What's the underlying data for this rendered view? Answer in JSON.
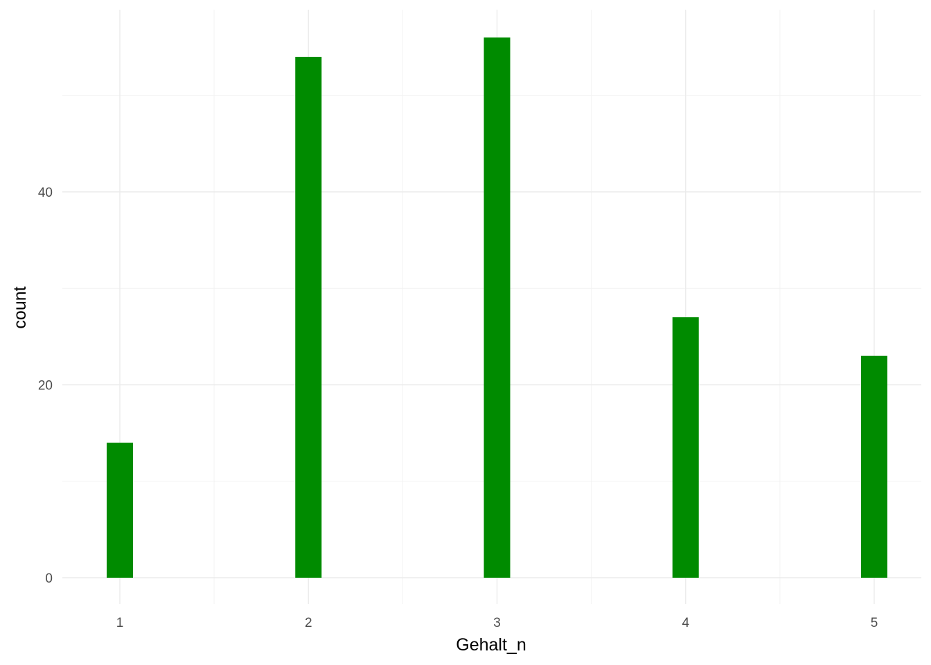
{
  "chart_data": {
    "type": "bar",
    "title": "",
    "xlabel": "Gehalt_n",
    "ylabel": "count",
    "x": [
      1,
      2,
      3,
      4,
      5
    ],
    "x_tick_labels": [
      "1",
      "2",
      "3",
      "4",
      "5"
    ],
    "values": [
      14,
      54,
      56,
      27,
      23
    ],
    "y_ticks": [
      0,
      20,
      40
    ],
    "y_tick_labels": [
      "0",
      "20",
      "40"
    ],
    "xlim": [
      0.5,
      5.25
    ],
    "ylim": [
      -2.8,
      58.8
    ],
    "bar_color": "#008B00",
    "grid": true,
    "legend": "none"
  }
}
